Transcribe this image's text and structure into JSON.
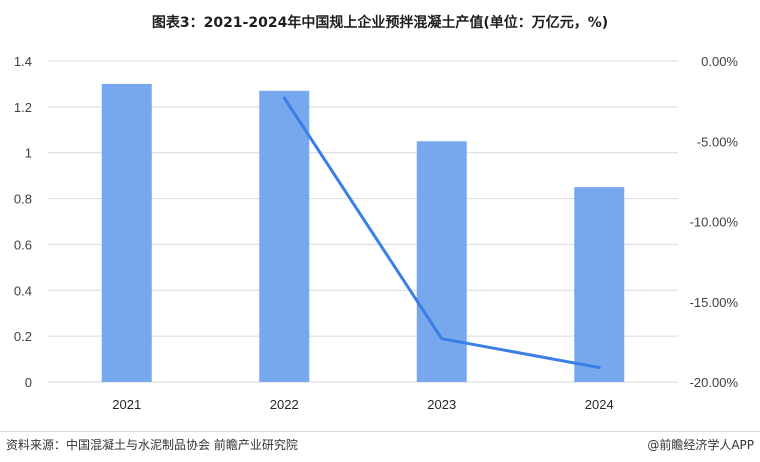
{
  "title": "图表3：2021-2024年中国规上企业预拌混凝土产值(单位：万亿元，%)",
  "source": "资料来源：中国混凝土与水泥制品协会 前瞻产业研究院",
  "credit": "@前瞻经济学人APP",
  "chart_data": {
    "type": "bar+line",
    "categories": [
      "2021",
      "2022",
      "2023",
      "2024"
    ],
    "bar_series": {
      "axis": "left",
      "color": "#77a8ee",
      "values": [
        1.3,
        1.27,
        1.05,
        0.85
      ]
    },
    "line_series": {
      "axis": "right",
      "color": "#3a7ee6",
      "values": [
        null,
        -2.3,
        -17.3,
        -19.1
      ]
    },
    "left_axis": {
      "min": 0,
      "max": 1.4,
      "step": 0.2,
      "tick_labels": [
        "0",
        "0.2",
        "0.4",
        "0.6",
        "0.8",
        "1",
        "1.2",
        "1.4"
      ]
    },
    "right_axis": {
      "min": -20,
      "max": 0,
      "step": 5,
      "tick_labels": [
        "-20.00%",
        "-15.00%",
        "-10.00%",
        "-5.00%",
        "0.00%"
      ]
    },
    "grid": true,
    "legend": "none"
  }
}
